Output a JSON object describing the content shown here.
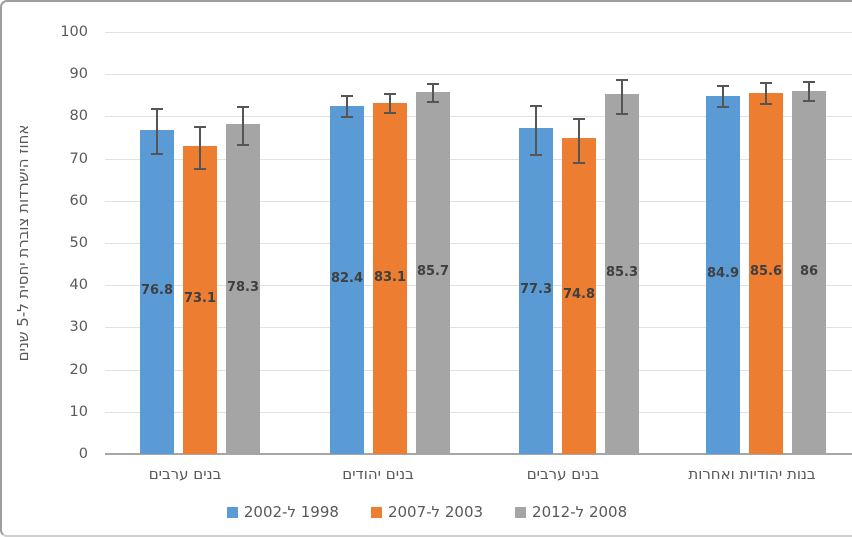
{
  "chart_data": {
    "type": "bar",
    "rtl": true,
    "title": "",
    "ylabel": "אחוז הישרדות צוברת יחסית ל-5 שנים",
    "xlabel": "",
    "ylim": [
      0,
      100
    ],
    "yticks": [
      0,
      10,
      20,
      30,
      40,
      50,
      60,
      70,
      80,
      90,
      100
    ],
    "grid": true,
    "legend_position": "bottom",
    "error_bars": true,
    "categories": [
      "בנים ערבים",
      "בנים יהודים",
      "בנים ערבים",
      "בנות יהודיות ואחרות"
    ],
    "series": [
      {
        "name": "1998 ל-2002",
        "color": "#5B9BD5",
        "values": [
          76.8,
          82.4,
          77.3,
          84.9
        ],
        "labels": [
          "76.8",
          "82.4",
          "77.3",
          "84.9"
        ],
        "error_low": [
          70.9,
          79.7,
          70.5,
          82.1
        ],
        "error_high": [
          81.9,
          85.0,
          82.6,
          87.4
        ]
      },
      {
        "name": "2003 ל-2007",
        "color": "#ED7D31",
        "values": [
          73.1,
          83.1,
          74.8,
          85.6
        ],
        "labels": [
          "73.1",
          "83.1",
          "74.8",
          "85.6"
        ],
        "error_low": [
          67.4,
          80.5,
          68.8,
          82.8
        ],
        "error_high": [
          77.8,
          85.5,
          79.7,
          88.2
        ]
      },
      {
        "name": "2008 ל-2012",
        "color": "#A5A5A5",
        "values": [
          78.3,
          85.7,
          85.3,
          86
        ],
        "labels": [
          "78.3",
          "85.7",
          "85.3",
          "86"
        ],
        "error_low": [
          73.1,
          83.2,
          80.3,
          83.4
        ],
        "error_high": [
          82.4,
          87.8,
          88.9,
          88.4
        ]
      }
    ],
    "styles": {
      "gridline_color": "#e2e2e2",
      "axis_line_color": "#a6a6a6",
      "tick_label_color": "#595959",
      "data_label_color": "#3f3f3f",
      "error_bar_color": "#555555",
      "frame_border_color": "#9e9e9e"
    }
  }
}
